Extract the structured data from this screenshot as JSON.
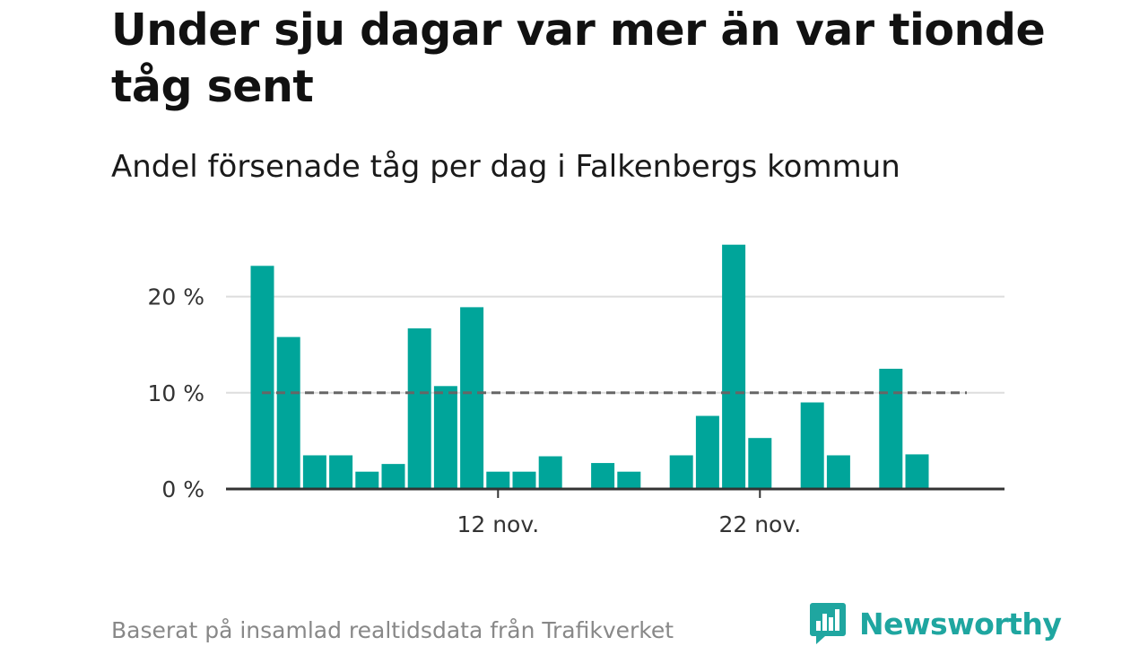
{
  "title": "Under sju dagar var mer än var tionde tåg sent",
  "subtitle": "Andel försenade tåg per dag i Falkenbergs kommun",
  "source": "Baserat på insamlad realtidsdata från Trafikverket",
  "brand": "Newsworthy",
  "colors": {
    "bar": "#00a59a",
    "reference_line": "#666666",
    "grid": "#dddddd",
    "axis": "#333333",
    "brand": "#1fa6a0"
  },
  "chart_data": {
    "type": "bar",
    "title": "Under sju dagar var mer än var tionde tåg sent",
    "subtitle": "Andel försenade tåg per dag i Falkenbergs kommun",
    "xlabel": "",
    "ylabel": "",
    "y_unit": "%",
    "ylim": [
      0,
      25.5
    ],
    "yticks": [
      {
        "value": 0,
        "label": "0 %"
      },
      {
        "value": 10,
        "label": "10 %"
      },
      {
        "value": 20,
        "label": "20 %"
      }
    ],
    "xticks": [
      {
        "date": "2023-11-12",
        "label": "12 nov."
      },
      {
        "date": "2023-11-22",
        "label": "22 nov."
      }
    ],
    "x": [
      "2023-11-03",
      "2023-11-04",
      "2023-11-05",
      "2023-11-06",
      "2023-11-07",
      "2023-11-08",
      "2023-11-09",
      "2023-11-10",
      "2023-11-11",
      "2023-11-12",
      "2023-11-13",
      "2023-11-14",
      "2023-11-15",
      "2023-11-16",
      "2023-11-17",
      "2023-11-18",
      "2023-11-19",
      "2023-11-20",
      "2023-11-21",
      "2023-11-22",
      "2023-11-23",
      "2023-11-24",
      "2023-11-25",
      "2023-11-26",
      "2023-11-27",
      "2023-11-28",
      "2023-11-29",
      "2023-11-30",
      "2023-12-01"
    ],
    "values": [
      23.2,
      15.8,
      3.5,
      3.5,
      1.8,
      2.6,
      16.7,
      10.7,
      18.9,
      1.8,
      1.8,
      3.4,
      null,
      2.7,
      1.8,
      null,
      3.5,
      7.6,
      25.4,
      5.3,
      null,
      9.0,
      3.5,
      null,
      12.5,
      3.6,
      null,
      null,
      null
    ],
    "reference_line": {
      "value": 10
    },
    "grid": true,
    "legend": "none"
  }
}
